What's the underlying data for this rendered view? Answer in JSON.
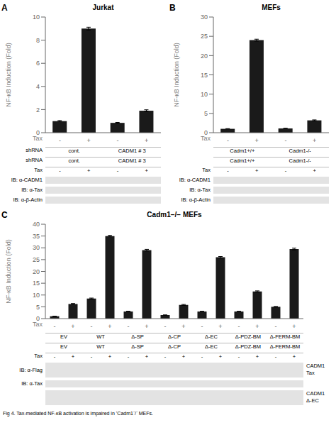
{
  "chart_data": [
    {
      "type": "bar",
      "title": "Jurkat",
      "ylabel": "NF-κB Induction (Fold)",
      "xlabel": "Tax",
      "categories": [
        "-",
        "+",
        "-",
        "+"
      ],
      "values": [
        1.0,
        9.0,
        0.85,
        1.9
      ],
      "errors": [
        0.05,
        0.12,
        0.04,
        0.08
      ],
      "color": "#1a1a1a",
      "ylim": [
        0,
        10
      ],
      "yticks": [
        0,
        2,
        4,
        6,
        8,
        10
      ],
      "annotations": [
        {
          "text": "A"
        },
        {
          "label": "shRNA",
          "groups": [
            "cont.",
            "CADM1 # 3"
          ]
        },
        {
          "label": "shRNA",
          "groups": [
            "cont.",
            "CADM1 # 3"
          ]
        },
        {
          "label": "Tax",
          "groups": [
            "-",
            "+",
            "-",
            "+"
          ]
        },
        {
          "type": "blot",
          "label": "IB: α-CADM1"
        },
        {
          "type": "blot",
          "label": "IB: α-Tax"
        },
        {
          "type": "blot",
          "label": "IB: α-β-Actin"
        }
      ]
    },
    {
      "type": "bar",
      "title": "MEFs",
      "ylabel": "NF-κB Induction (Fold)",
      "xlabel": "Tax",
      "categories": [
        "-",
        "+",
        "-",
        "+"
      ],
      "values": [
        1.0,
        24.0,
        1.1,
        3.2
      ],
      "errors": [
        0.05,
        0.25,
        0.05,
        0.12
      ],
      "color": "#1a1a1a",
      "ylim": [
        0,
        30
      ],
      "yticks": [
        0,
        5,
        10,
        15,
        20,
        25,
        30
      ],
      "annotations": [
        {
          "text": "B"
        },
        {
          "groups": [
            "Cadm1+/+",
            "Cadm1-/-"
          ]
        },
        {
          "groups": [
            "Cadm1+/+",
            "Cadm1-/-"
          ]
        },
        {
          "label": "Tax",
          "groups": [
            "-",
            "+",
            "-",
            "+"
          ]
        },
        {
          "type": "blot",
          "label": "IB: α-CADM1"
        },
        {
          "type": "blot",
          "label": "IB: α-Tax"
        },
        {
          "type": "blot",
          "label": "IB: α-β-Actin"
        }
      ]
    },
    {
      "type": "bar",
      "title": "Cadm1−/− MEFs",
      "ylabel": "NF-κB Induction (Fold)",
      "xlabel": "Tax",
      "categories": [
        "-",
        "+",
        "-",
        "+",
        "-",
        "+",
        "-",
        "+",
        "-",
        "+",
        "-",
        "+",
        "-",
        "+"
      ],
      "values": [
        1.0,
        6.2,
        8.5,
        35.0,
        3.0,
        29.0,
        1.5,
        5.8,
        3.0,
        26.0,
        3.0,
        11.5,
        5.0,
        29.5
      ],
      "errors": [
        0.05,
        0.2,
        0.2,
        0.3,
        0.12,
        0.35,
        0.05,
        0.2,
        0.1,
        0.3,
        0.1,
        0.25,
        0.15,
        0.35
      ],
      "color": "#1a1a1a",
      "ylim": [
        0,
        40
      ],
      "yticks": [
        0,
        5,
        10,
        15,
        20,
        25,
        30,
        35,
        40
      ],
      "annotations": [
        {
          "text": "C"
        },
        {
          "groups": [
            "EV",
            "WT",
            "Δ-SP",
            "Δ-CP",
            "Δ-EC",
            "Δ-PDZ-BM",
            "Δ-FERM-BM"
          ]
        },
        {
          "groups": [
            "EV",
            "WT",
            "Δ-SP",
            "Δ-CP",
            "Δ-EC",
            "Δ-PDZ-BM",
            "Δ-FERM-BM"
          ]
        },
        {
          "label": "Tax",
          "groups": [
            "-",
            "+",
            "-",
            "+",
            "-",
            "+",
            "-",
            "+",
            "-",
            "+",
            "-",
            "+",
            "-",
            "+"
          ]
        },
        {
          "type": "blot",
          "label": "IB: α-Flag",
          "right": [
            "CADM1",
            "Tax"
          ]
        },
        {
          "type": "blot",
          "label": "IB: α-Tax"
        },
        {
          "type": "blot",
          "right": [
            "CADM1",
            "Δ-EC"
          ]
        }
      ]
    }
  ],
  "annotations": [
    {
      "text": "Fig 4. Tax-mediated NF-κB activation is impaired in ’Cadm1⁻/⁻ MEFs."
    }
  ]
}
